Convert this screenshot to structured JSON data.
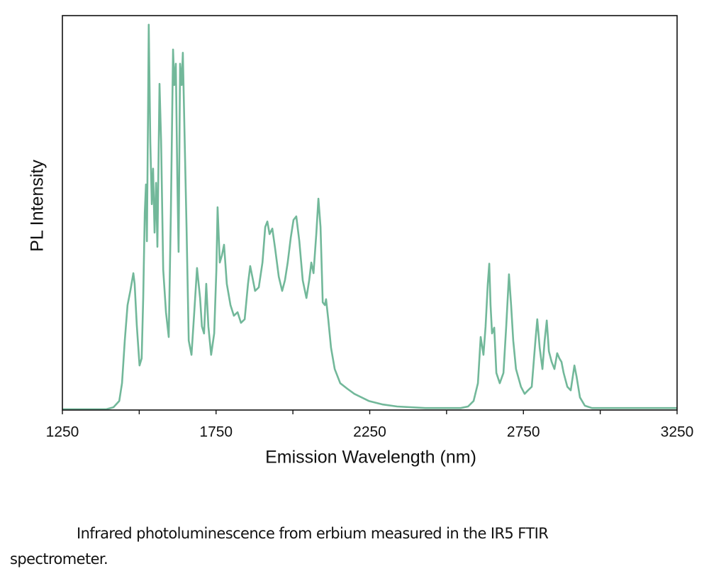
{
  "chart_data": {
    "type": "line",
    "xlabel": "Emission Wavelength (nm)",
    "ylabel": "PL Intensity",
    "color": "#72b89a",
    "xlim": [
      1250,
      3250
    ],
    "xticks": [
      1250,
      1750,
      2250,
      2750,
      3250
    ],
    "minor_xticks": [
      1500,
      2000,
      2500,
      3000
    ],
    "ylim": [
      0,
      100
    ],
    "x": [
      1250,
      1393,
      1416,
      1435,
      1444,
      1453,
      1462,
      1471,
      1481,
      1485,
      1492,
      1501,
      1508,
      1513,
      1518,
      1522,
      1525,
      1529,
      1531,
      1536,
      1541,
      1545,
      1550,
      1555,
      1559,
      1566,
      1571,
      1578,
      1587,
      1596,
      1603,
      1610,
      1614,
      1619,
      1624,
      1628,
      1633,
      1638,
      1642,
      1647,
      1654,
      1661,
      1670,
      1679,
      1688,
      1698,
      1704,
      1711,
      1718,
      1725,
      1734,
      1744,
      1751,
      1755,
      1762,
      1769,
      1776,
      1785,
      1797,
      1808,
      1820,
      1831,
      1843,
      1854,
      1861,
      1868,
      1877,
      1889,
      1901,
      1910,
      1917,
      1924,
      1933,
      1942,
      1954,
      1965,
      1974,
      1983,
      1993,
      2002,
      2011,
      2021,
      2032,
      2044,
      2053,
      2060,
      2067,
      2076,
      2083,
      2090,
      2097,
      2104,
      2108,
      2115,
      2124,
      2136,
      2154,
      2177,
      2200,
      2247,
      2293,
      2339,
      2431,
      2546,
      2570,
      2588,
      2602,
      2611,
      2620,
      2627,
      2634,
      2639,
      2643,
      2648,
      2655,
      2662,
      2673,
      2685,
      2694,
      2703,
      2710,
      2717,
      2726,
      2742,
      2754,
      2765,
      2777,
      2789,
      2795,
      2803,
      2812,
      2819,
      2826,
      2833,
      2842,
      2851,
      2860,
      2867,
      2874,
      2881,
      2893,
      2904,
      2916,
      2923,
      2934,
      2950,
      2973,
      3250
    ],
    "values": [
      0.2,
      0.2,
      0.7,
      2.3,
      6.8,
      17.6,
      26.6,
      30.2,
      34.7,
      32.0,
      21.6,
      11.3,
      13.1,
      28.4,
      50.0,
      57.2,
      42.8,
      77.0,
      97.7,
      68.0,
      52.2,
      61.2,
      45.0,
      57.6,
      41.4,
      82.7,
      68.3,
      35.6,
      24.8,
      18.5,
      50.0,
      91.4,
      82.4,
      87.8,
      59.0,
      40.1,
      87.8,
      82.4,
      90.6,
      71.6,
      46.4,
      17.6,
      14.0,
      24.8,
      36.0,
      28.4,
      21.2,
      19.4,
      32.0,
      21.2,
      14.0,
      19.4,
      35.6,
      51.4,
      37.4,
      39.2,
      41.9,
      32.0,
      26.6,
      23.9,
      24.8,
      22.1,
      23.0,
      32.0,
      36.5,
      33.8,
      30.2,
      31.1,
      37.4,
      46.4,
      47.8,
      44.6,
      46.0,
      41.0,
      33.8,
      30.2,
      32.9,
      37.4,
      43.7,
      48.2,
      49.1,
      42.8,
      32.9,
      28.4,
      32.9,
      37.4,
      34.7,
      44.6,
      53.6,
      46.4,
      27.3,
      26.6,
      28.1,
      23.0,
      15.8,
      10.4,
      6.8,
      5.4,
      4.1,
      2.3,
      1.4,
      0.9,
      0.5,
      0.5,
      0.9,
      2.3,
      6.8,
      18.5,
      14.0,
      21.2,
      32.0,
      37.1,
      26.6,
      19.4,
      20.9,
      9.4,
      6.8,
      9.4,
      21.2,
      34.4,
      26.6,
      17.6,
      10.4,
      5.9,
      4.1,
      5.0,
      5.9,
      17.6,
      23.0,
      15.8,
      10.4,
      17.6,
      22.7,
      14.9,
      12.2,
      10.4,
      14.4,
      13.1,
      12.2,
      9.4,
      5.9,
      5.0,
      11.3,
      8.5,
      3.2,
      1.1,
      0.5,
      0.5
    ]
  },
  "caption": "Infrared photoluminescence from erbium measured in the IR5 FTIR spectrometer."
}
